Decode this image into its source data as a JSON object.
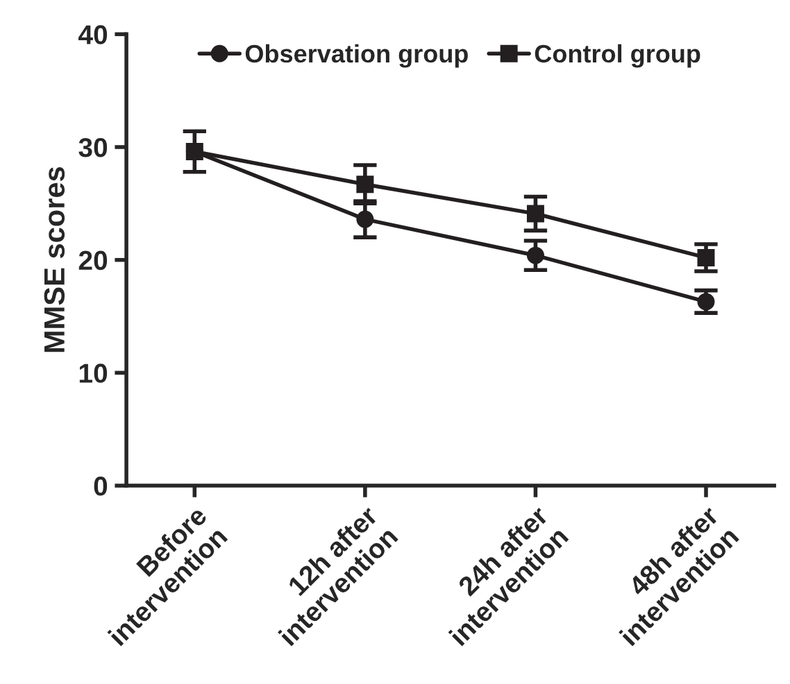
{
  "chart_data": {
    "type": "line",
    "ylabel": "MMSE scores",
    "categories": [
      "Before\nintervention",
      "12h after\nintervention",
      "24h after\nintervention",
      "48h after\nintervention"
    ],
    "series": [
      {
        "name": "Observation group",
        "color": "#231f20",
        "marker": "circle",
        "values": [
          29.6,
          23.6,
          20.4,
          16.3
        ],
        "errors": [
          null,
          1.6,
          1.3,
          1.0
        ]
      },
      {
        "name": "Control group",
        "color": "#231f20",
        "marker": "square",
        "values": [
          29.6,
          26.7,
          24.1,
          20.2
        ],
        "errors": [
          1.8,
          1.7,
          1.5,
          1.2
        ]
      }
    ],
    "ylim": [
      0,
      40
    ],
    "yticks": [
      0,
      10,
      20,
      30,
      40
    ],
    "grid": false,
    "legend": "top",
    "line_style": "solid"
  }
}
